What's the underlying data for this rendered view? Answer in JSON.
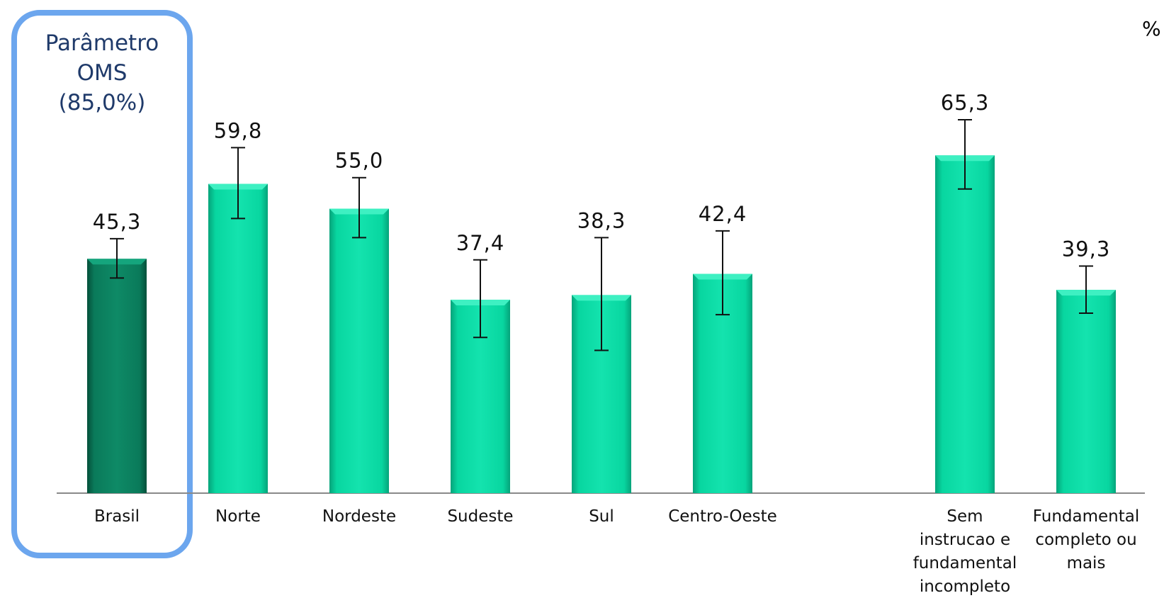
{
  "unit_label": "%",
  "parameter_note": {
    "lines": [
      "Parâmetro",
      "OMS",
      "(85,0%)"
    ]
  },
  "colors": {
    "brasil_bar": "#0A7A5A",
    "bar": "#08D6A0",
    "box_border": "#6CA6EE",
    "note_text": "#1F3A6A"
  },
  "chart_data": {
    "type": "bar",
    "ylim": [
      0,
      100
    ],
    "grid": false,
    "categories": [
      [
        "Brasil"
      ],
      [
        "Norte"
      ],
      [
        "Nordeste"
      ],
      [
        "Sudeste"
      ],
      [
        "Sul"
      ],
      [
        "Centro-Oeste"
      ],
      [
        "Sem",
        "instrucao e",
        "fundamental",
        "incompleto"
      ],
      [
        "Fundamental",
        "completo ou",
        "mais"
      ]
    ],
    "values": [
      45.3,
      59.8,
      55.0,
      37.4,
      38.3,
      42.4,
      65.3,
      39.3
    ],
    "value_labels": [
      "45,3",
      "59,8",
      "55,0",
      "37,4",
      "38,3",
      "42,4",
      "65,3",
      "39,3"
    ],
    "error_low": [
      41.6,
      53.1,
      49.4,
      30.1,
      27.6,
      34.5,
      58.8,
      34.8
    ],
    "error_high": [
      49.2,
      66.8,
      61.0,
      45.1,
      49.4,
      50.7,
      72.2,
      43.9
    ]
  }
}
